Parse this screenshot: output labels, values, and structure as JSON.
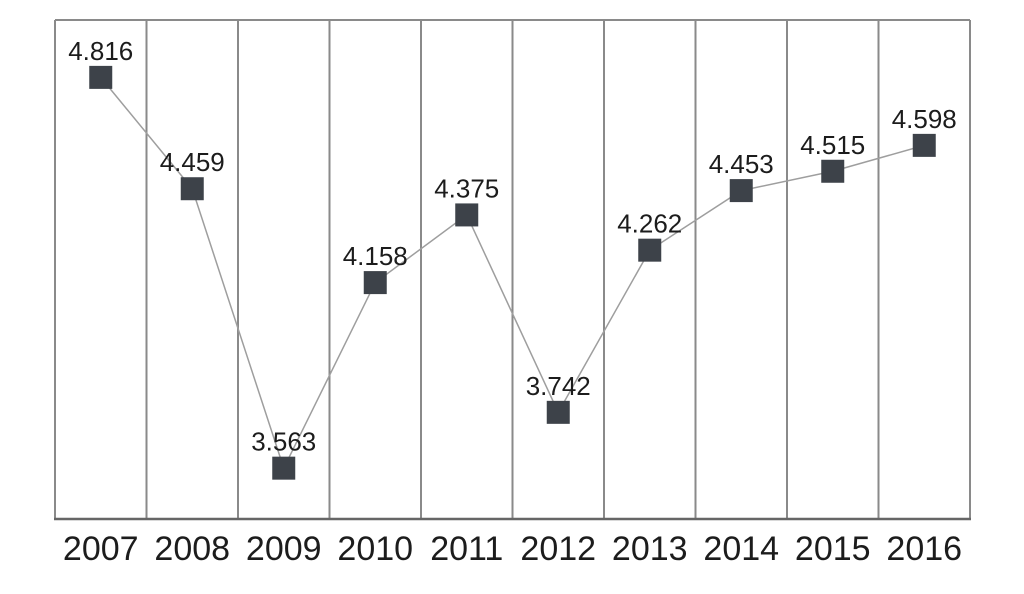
{
  "chart_data": {
    "type": "line",
    "categories": [
      "2007",
      "2008",
      "2009",
      "2010",
      "2011",
      "2012",
      "2013",
      "2014",
      "2015",
      "2016"
    ],
    "values": [
      4.816,
      4.459,
      3.563,
      4.158,
      4.375,
      3.742,
      4.262,
      4.453,
      4.515,
      4.598
    ],
    "value_labels": [
      "4.816",
      "4.459",
      "3.563",
      "4.158",
      "4.375",
      "3.742",
      "4.262",
      "4.453",
      "4.515",
      "4.598"
    ],
    "title": "",
    "xlabel": "",
    "ylabel": "",
    "ylim": [
      3.4,
      5.0
    ],
    "grid": "vertical-column-separators",
    "legend": "none",
    "marker": "square",
    "data_labels": "above-points"
  },
  "colors": {
    "background": "#ffffff",
    "marker": "#3d4249",
    "series_line": "#9e9e9e",
    "gridline": "#8a8a8a",
    "frame": "#8a8a8a",
    "axis_line": "#666666",
    "value_label_text": "#1c1c1c",
    "category_label_text": "#1c1c1c"
  }
}
